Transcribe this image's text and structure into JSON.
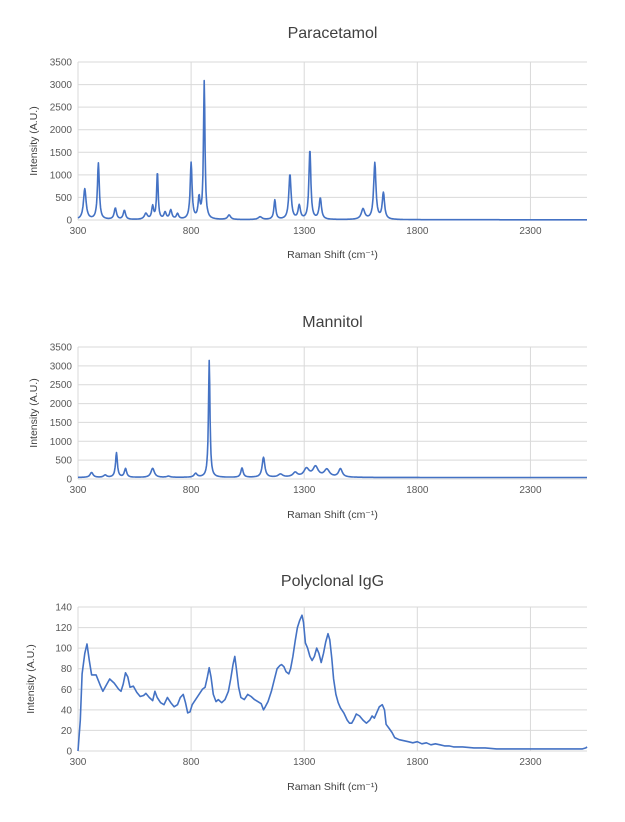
{
  "colors": {
    "series": "#4472c4",
    "grid": "#d9d9d9",
    "text": "#404040",
    "ticks": "#595959"
  },
  "chart_data": [
    {
      "type": "line",
      "title": "Paracetamol",
      "xlabel": "Raman Shift (cm⁻¹)",
      "ylabel": "Intensity (A.U.)",
      "xlim": [
        300,
        2550
      ],
      "ylim": [
        0,
        3500
      ],
      "xticks": [
        300,
        800,
        1300,
        1800,
        2300
      ],
      "yticks": [
        0,
        500,
        1000,
        1500,
        2000,
        2500,
        3000,
        3500
      ],
      "grid": true,
      "baseline": 5,
      "peaks": [
        {
          "x": 330,
          "h": 680,
          "w": 7
        },
        {
          "x": 390,
          "h": 1250,
          "w": 5
        },
        {
          "x": 465,
          "h": 250,
          "w": 6
        },
        {
          "x": 505,
          "h": 200,
          "w": 6
        },
        {
          "x": 600,
          "h": 130,
          "w": 8
        },
        {
          "x": 630,
          "h": 280,
          "w": 5
        },
        {
          "x": 651,
          "h": 1050,
          "w": 4
        },
        {
          "x": 685,
          "h": 150,
          "w": 6
        },
        {
          "x": 710,
          "h": 200,
          "w": 6
        },
        {
          "x": 740,
          "h": 120,
          "w": 6
        },
        {
          "x": 800,
          "h": 1250,
          "w": 5
        },
        {
          "x": 835,
          "h": 450,
          "w": 5
        },
        {
          "x": 858,
          "h": 3050,
          "w": 4
        },
        {
          "x": 968,
          "h": 100,
          "w": 8
        },
        {
          "x": 1105,
          "h": 60,
          "w": 10
        },
        {
          "x": 1170,
          "h": 430,
          "w": 5
        },
        {
          "x": 1237,
          "h": 1000,
          "w": 6
        },
        {
          "x": 1278,
          "h": 300,
          "w": 6
        },
        {
          "x": 1325,
          "h": 1550,
          "w": 5
        },
        {
          "x": 1371,
          "h": 470,
          "w": 6
        },
        {
          "x": 1560,
          "h": 230,
          "w": 9
        },
        {
          "x": 1612,
          "h": 1250,
          "w": 6
        },
        {
          "x": 1650,
          "h": 580,
          "w": 6
        }
      ]
    },
    {
      "type": "line",
      "title": "Mannitol",
      "xlabel": "Raman Shift (cm⁻¹)",
      "ylabel": "Intensity (A.U.)",
      "xlim": [
        300,
        2550
      ],
      "ylim": [
        0,
        3500
      ],
      "xticks": [
        300,
        800,
        1300,
        1800,
        2300
      ],
      "yticks": [
        0,
        500,
        1000,
        1500,
        2000,
        2500,
        3000,
        3500
      ],
      "grid": true,
      "baseline": 40,
      "peaks": [
        {
          "x": 360,
          "h": 130,
          "w": 8
        },
        {
          "x": 420,
          "h": 60,
          "w": 8
        },
        {
          "x": 470,
          "h": 650,
          "w": 5
        },
        {
          "x": 510,
          "h": 230,
          "w": 6
        },
        {
          "x": 630,
          "h": 240,
          "w": 9
        },
        {
          "x": 700,
          "h": 30,
          "w": 10
        },
        {
          "x": 820,
          "h": 100,
          "w": 8
        },
        {
          "x": 880,
          "h": 3100,
          "w": 4
        },
        {
          "x": 1025,
          "h": 250,
          "w": 6
        },
        {
          "x": 1120,
          "h": 530,
          "w": 7
        },
        {
          "x": 1195,
          "h": 80,
          "w": 12
        },
        {
          "x": 1260,
          "h": 120,
          "w": 12
        },
        {
          "x": 1310,
          "h": 220,
          "w": 14
        },
        {
          "x": 1350,
          "h": 270,
          "w": 14
        },
        {
          "x": 1400,
          "h": 200,
          "w": 14
        },
        {
          "x": 1460,
          "h": 220,
          "w": 10
        }
      ]
    },
    {
      "type": "line",
      "title": "Polyclonal IgG",
      "xlabel": "Raman Shift (cm⁻¹)",
      "ylabel": "Intensity (A.U.)",
      "xlim": [
        300,
        2550
      ],
      "ylim": [
        0,
        140
      ],
      "xticks": [
        300,
        800,
        1300,
        1800,
        2300
      ],
      "yticks": [
        0,
        20,
        40,
        60,
        80,
        100,
        120,
        140
      ],
      "grid": true,
      "points": [
        [
          300,
          0
        ],
        [
          310,
          30
        ],
        [
          318,
          75
        ],
        [
          330,
          95
        ],
        [
          340,
          104
        ],
        [
          350,
          88
        ],
        [
          360,
          74
        ],
        [
          380,
          74
        ],
        [
          400,
          63
        ],
        [
          410,
          58
        ],
        [
          420,
          62
        ],
        [
          440,
          70
        ],
        [
          460,
          66
        ],
        [
          480,
          60
        ],
        [
          490,
          58
        ],
        [
          500,
          65
        ],
        [
          510,
          76
        ],
        [
          520,
          72
        ],
        [
          530,
          62
        ],
        [
          545,
          63
        ],
        [
          560,
          57
        ],
        [
          575,
          53
        ],
        [
          590,
          54
        ],
        [
          600,
          56
        ],
        [
          615,
          52
        ],
        [
          630,
          49
        ],
        [
          640,
          58
        ],
        [
          650,
          52
        ],
        [
          665,
          47
        ],
        [
          680,
          45
        ],
        [
          695,
          52
        ],
        [
          710,
          47
        ],
        [
          725,
          43
        ],
        [
          740,
          45
        ],
        [
          752,
          52
        ],
        [
          765,
          55
        ],
        [
          775,
          47
        ],
        [
          785,
          37
        ],
        [
          795,
          38
        ],
        [
          805,
          45
        ],
        [
          820,
          50
        ],
        [
          835,
          55
        ],
        [
          850,
          60
        ],
        [
          862,
          62
        ],
        [
          872,
          72
        ],
        [
          880,
          81
        ],
        [
          888,
          72
        ],
        [
          898,
          55
        ],
        [
          910,
          48
        ],
        [
          920,
          50
        ],
        [
          935,
          47
        ],
        [
          950,
          50
        ],
        [
          965,
          58
        ],
        [
          975,
          70
        ],
        [
          985,
          84
        ],
        [
          993,
          92
        ],
        [
          1000,
          80
        ],
        [
          1010,
          62
        ],
        [
          1020,
          52
        ],
        [
          1035,
          50
        ],
        [
          1050,
          55
        ],
        [
          1065,
          53
        ],
        [
          1080,
          50
        ],
        [
          1095,
          48
        ],
        [
          1110,
          46
        ],
        [
          1120,
          40
        ],
        [
          1128,
          43
        ],
        [
          1140,
          48
        ],
        [
          1155,
          58
        ],
        [
          1165,
          67
        ],
        [
          1180,
          80
        ],
        [
          1192,
          83
        ],
        [
          1200,
          84
        ],
        [
          1210,
          82
        ],
        [
          1220,
          77
        ],
        [
          1232,
          75
        ],
        [
          1240,
          80
        ],
        [
          1250,
          92
        ],
        [
          1260,
          107
        ],
        [
          1270,
          120
        ],
        [
          1280,
          127
        ],
        [
          1290,
          132
        ],
        [
          1297,
          125
        ],
        [
          1305,
          105
        ],
        [
          1315,
          100
        ],
        [
          1325,
          92
        ],
        [
          1335,
          88
        ],
        [
          1345,
          92
        ],
        [
          1355,
          100
        ],
        [
          1365,
          95
        ],
        [
          1375,
          86
        ],
        [
          1385,
          95
        ],
        [
          1395,
          106
        ],
        [
          1405,
          114
        ],
        [
          1413,
          108
        ],
        [
          1422,
          90
        ],
        [
          1430,
          70
        ],
        [
          1440,
          55
        ],
        [
          1450,
          47
        ],
        [
          1460,
          42
        ],
        [
          1475,
          37
        ],
        [
          1490,
          30
        ],
        [
          1500,
          27
        ],
        [
          1510,
          27
        ],
        [
          1520,
          31
        ],
        [
          1530,
          36
        ],
        [
          1545,
          34
        ],
        [
          1560,
          30
        ],
        [
          1575,
          27
        ],
        [
          1590,
          30
        ],
        [
          1600,
          34
        ],
        [
          1610,
          32
        ],
        [
          1620,
          37
        ],
        [
          1632,
          43
        ],
        [
          1645,
          45
        ],
        [
          1655,
          40
        ],
        [
          1662,
          26
        ],
        [
          1675,
          22
        ],
        [
          1688,
          18
        ],
        [
          1700,
          13
        ],
        [
          1720,
          11
        ],
        [
          1740,
          10
        ],
        [
          1760,
          9
        ],
        [
          1780,
          8
        ],
        [
          1800,
          9
        ],
        [
          1820,
          7
        ],
        [
          1840,
          8
        ],
        [
          1860,
          6
        ],
        [
          1880,
          7
        ],
        [
          1900,
          6
        ],
        [
          1920,
          5
        ],
        [
          1940,
          5
        ],
        [
          1960,
          4
        ],
        [
          1980,
          4
        ],
        [
          2000,
          4
        ],
        [
          2050,
          3
        ],
        [
          2100,
          3
        ],
        [
          2150,
          2
        ],
        [
          2200,
          2
        ],
        [
          2300,
          2
        ],
        [
          2400,
          2
        ],
        [
          2450,
          2
        ],
        [
          2500,
          2
        ],
        [
          2530,
          2
        ],
        [
          2545,
          3
        ],
        [
          2550,
          4
        ]
      ]
    }
  ]
}
